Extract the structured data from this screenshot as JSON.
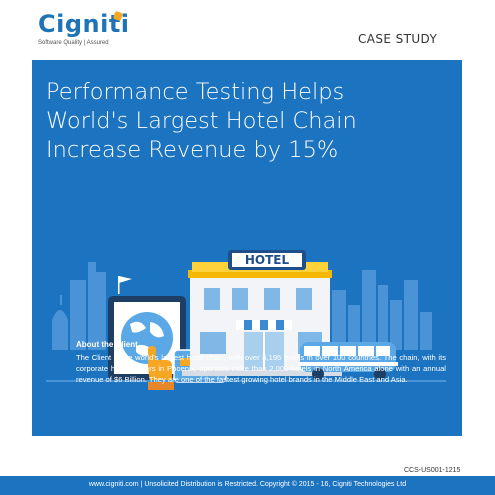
{
  "header": {
    "logo_text": "Cigniti",
    "tagline": "Software Quality | Assured",
    "doc_type": "CASE STUDY"
  },
  "hero": {
    "title_lines": [
      "Performance Testing Helps",
      "World's Largest Hotel Chain",
      "Increase Revenue by 15%"
    ],
    "hotel_sign": "HOTEL"
  },
  "about": {
    "heading": "About the Client",
    "body": "The Client is the world's largest hotel chain, with over 4,195 hotels in over 100 countries. The chain, with its corporate headquarters in Phoenix, operates more than 2,000 hotels in North America alone with an annual revenue of $6 Billion. They are one of the fastest growing hotel brands in the Middle East and Asia."
  },
  "doc_code": "CCS-US001-1215",
  "footer": {
    "text": "www.cigniti.com  |  Unsolicited Distribution is Restricted. Copyright © 2015 - 16, Cigniti Technologies Ltd"
  },
  "colors": {
    "brand_blue": "#1c73c0",
    "logo_blue": "#1f73b7",
    "accent_orange": "#f5a623",
    "skyline": "#4a93d6"
  }
}
